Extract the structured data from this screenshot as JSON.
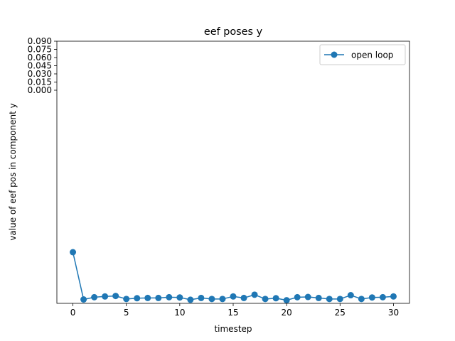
{
  "chart_data": {
    "type": "line",
    "title": "eef poses y",
    "xlabel": "timestep",
    "ylabel": "value of eef pos in component y",
    "xlim": [
      -1.5,
      31.5
    ],
    "xticks": [
      0,
      5,
      10,
      15,
      20,
      25,
      30
    ],
    "yticks": [
      "0.090",
      "0.075",
      "0.060",
      "0.045",
      "0.030",
      "0.015",
      "0.000"
    ],
    "legend_position": "top-right",
    "grid": false,
    "series": [
      {
        "name": "open loop",
        "color": "#1f77b4",
        "marker": "circle",
        "x": [
          0,
          1,
          2,
          3,
          4,
          5,
          6,
          7,
          8,
          9,
          10,
          11,
          12,
          13,
          14,
          15,
          16,
          17,
          18,
          19,
          20,
          21,
          22,
          23,
          24,
          25,
          26,
          27,
          28,
          29,
          30
        ],
        "y": [
          0.0196,
          0.0007,
          0.0016,
          0.0019,
          0.0021,
          0.0009,
          0.0012,
          0.0013,
          0.0013,
          0.0016,
          0.0015,
          0.0006,
          0.0013,
          0.0009,
          0.0009,
          0.0019,
          0.0013,
          0.0026,
          0.0009,
          0.0012,
          0.0004,
          0.0016,
          0.0017,
          0.0013,
          0.0009,
          0.0009,
          0.0024,
          0.0009,
          0.0015,
          0.0016,
          0.0019
        ]
      }
    ]
  }
}
